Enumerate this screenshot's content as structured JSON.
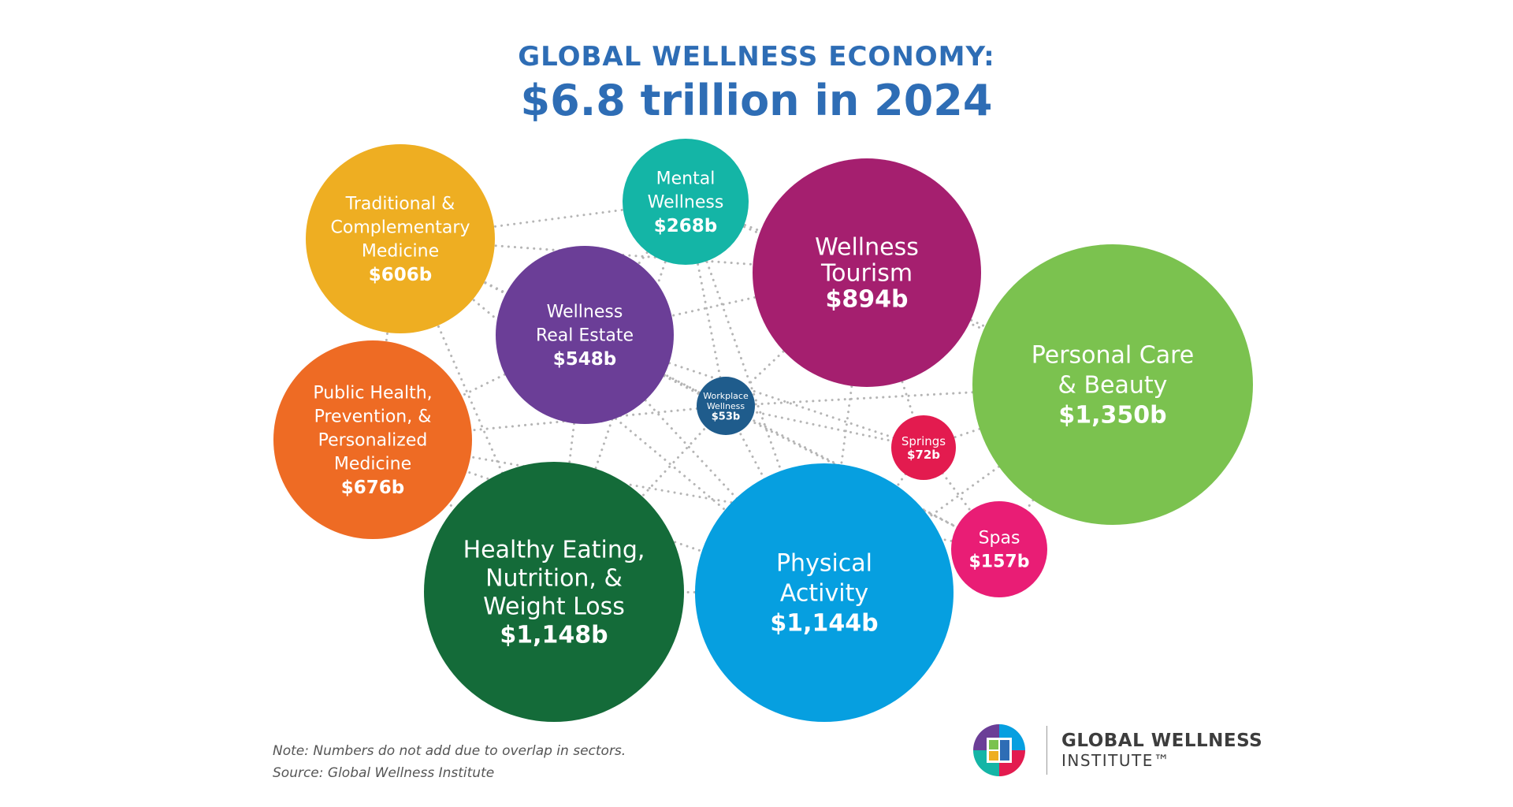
{
  "header": {
    "title": "GLOBAL WELLNESS ECONOMY:",
    "subtitle": "$6.8 trillion in 2024"
  },
  "chart_data": {
    "type": "bubble",
    "title": "GLOBAL WELLNESS ECONOMY:",
    "subtitle": "$6.8 trillion in 2024",
    "unit": "billion USD",
    "sectors": [
      {
        "name_lines": [
          "Traditional &",
          "Complementary",
          "Medicine"
        ],
        "value_label": "$606b",
        "value": 606,
        "color": "#eeae22"
      },
      {
        "name_lines": [
          "Mental",
          "Wellness"
        ],
        "value_label": "$268b",
        "value": 268,
        "color": "#14b5a6"
      },
      {
        "name_lines": [
          "Wellness",
          "Tourism"
        ],
        "value_label": "$894b",
        "value": 894,
        "color": "#a51f6f"
      },
      {
        "name_lines": [
          "Wellness",
          "Real Estate"
        ],
        "value_label": "$548b",
        "value": 548,
        "color": "#6b3e97"
      },
      {
        "name_lines": [
          "Personal Care",
          "& Beauty"
        ],
        "value_label": "$1,350b",
        "value": 1350,
        "color": "#7bc24f"
      },
      {
        "name_lines": [
          "Public Health,",
          "Prevention, &",
          "Personalized",
          "Medicine"
        ],
        "value_label": "$676b",
        "value": 676,
        "color": "#ee6b24"
      },
      {
        "name_lines": [
          "Workplace",
          "Wellness"
        ],
        "value_label": "$53b",
        "value": 53,
        "color": "#1f5c8c"
      },
      {
        "name_lines": [
          "Springs"
        ],
        "value_label": "$72b",
        "value": 72,
        "color": "#e31b4f"
      },
      {
        "name_lines": [
          "Healthy Eating,",
          "Nutrition, &",
          "Weight Loss"
        ],
        "value_label": "$1,148b",
        "value": 1148,
        "color": "#146b39"
      },
      {
        "name_lines": [
          "Physical",
          "Activity"
        ],
        "value_label": "$1,144b",
        "value": 1144,
        "color": "#069fe0"
      },
      {
        "name_lines": [
          "Spas"
        ],
        "value_label": "$157b",
        "value": 157,
        "color": "#e91d75"
      }
    ]
  },
  "footer": {
    "note": "Note: Numbers do not add due to overlap in sectors.",
    "source": "Source: Global Wellness Institute"
  },
  "logo": {
    "line1": "GLOBAL WELLNESS",
    "line2": "INSTITUTE™",
    "icon": "gwi-logo-icon"
  }
}
